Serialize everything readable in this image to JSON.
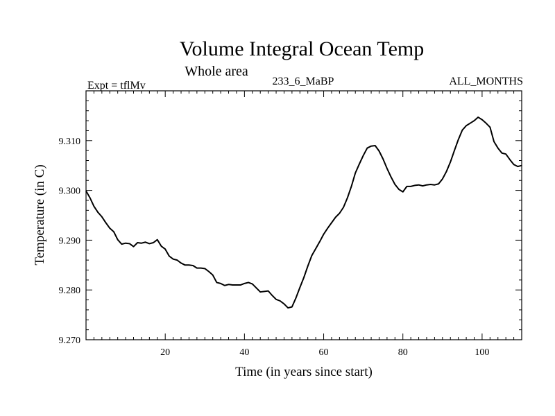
{
  "chart_data": {
    "type": "line",
    "title": "Volume Integral Ocean Temp",
    "subtitle": "Whole area",
    "left_label": "Expt = tflMv",
    "center_label": "233_6_MaBP",
    "right_label": "ALL_MONTHS",
    "xlabel": "Time (in years since start)",
    "ylabel": "Temperature (in C)",
    "xlim": [
      0,
      110
    ],
    "ylim": [
      9.27,
      9.32
    ],
    "x_ticks": [
      20,
      40,
      60,
      80,
      100
    ],
    "x_tick_labels": [
      "20",
      "40",
      "60",
      "80",
      "100"
    ],
    "y_ticks": [
      9.27,
      9.28,
      9.29,
      9.3,
      9.31
    ],
    "y_tick_labels": [
      "9.270",
      "9.280",
      "9.290",
      "9.300",
      "9.310"
    ],
    "grid": false,
    "series": [
      {
        "name": "Volume Integral Ocean Temp",
        "x": [
          0,
          1,
          2,
          3,
          4,
          5,
          6,
          7,
          8,
          9,
          10,
          11,
          12,
          13,
          14,
          15,
          16,
          17,
          18,
          19,
          20,
          21,
          22,
          23,
          24,
          25,
          26,
          27,
          28,
          29,
          30,
          31,
          32,
          33,
          34,
          35,
          36,
          37,
          38,
          39,
          40,
          41,
          42,
          43,
          44,
          45,
          46,
          47,
          48,
          49,
          50,
          51,
          52,
          53,
          54,
          55,
          56,
          57,
          58,
          59,
          60,
          61,
          62,
          63,
          64,
          65,
          66,
          67,
          68,
          69,
          70,
          71,
          72,
          73,
          74,
          75,
          76,
          77,
          78,
          79,
          80,
          81,
          82,
          83,
          84,
          85,
          86,
          87,
          88,
          89,
          90,
          91,
          92,
          93,
          94,
          95,
          96,
          97,
          98,
          99,
          100,
          101,
          102,
          103,
          104,
          105,
          106,
          107,
          108,
          109,
          110
        ],
        "y": [
          9.2999,
          9.2985,
          9.2968,
          9.2956,
          9.2947,
          9.2935,
          9.2924,
          9.2917,
          9.2901,
          9.2892,
          9.2894,
          9.2893,
          9.2887,
          9.2895,
          9.2894,
          9.2896,
          9.2893,
          9.2895,
          9.2901,
          9.2888,
          9.2882,
          9.2868,
          9.2862,
          9.286,
          9.2854,
          9.285,
          9.285,
          9.2849,
          9.2844,
          9.2844,
          9.2843,
          9.2837,
          9.283,
          9.2815,
          9.2813,
          9.2809,
          9.2811,
          9.281,
          9.281,
          9.281,
          9.2813,
          9.2815,
          9.2812,
          9.2804,
          9.2796,
          9.2797,
          9.2798,
          9.2789,
          9.2781,
          9.2778,
          9.2772,
          9.2764,
          9.2766,
          9.2784,
          9.2805,
          9.2825,
          9.2848,
          9.2869,
          9.2883,
          9.2897,
          9.2912,
          9.2924,
          9.2935,
          9.2946,
          9.2954,
          9.2966,
          9.2985,
          9.3008,
          9.3035,
          9.3053,
          9.307,
          9.3085,
          9.3089,
          9.309,
          9.3079,
          9.3063,
          9.3044,
          9.3027,
          9.3012,
          9.3002,
          9.2997,
          9.3008,
          9.3008,
          9.301,
          9.3011,
          9.3009,
          9.3011,
          9.3012,
          9.3011,
          9.3013,
          9.3023,
          9.3038,
          9.3057,
          9.308,
          9.3102,
          9.3121,
          9.313,
          9.3135,
          9.314,
          9.3147,
          9.3142,
          9.3135,
          9.3127,
          9.3098,
          9.3085,
          9.3075,
          9.3073,
          9.3062,
          9.3052,
          9.3048,
          9.305
        ]
      }
    ]
  }
}
